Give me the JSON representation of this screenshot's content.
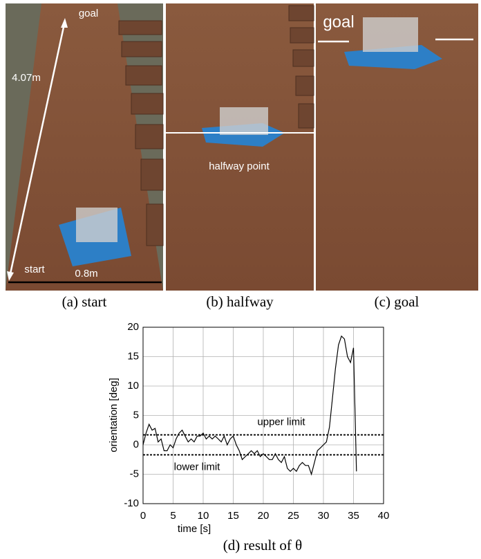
{
  "photos": [
    {
      "caption": "(a) start",
      "labels": [
        "goal",
        "4.07m",
        "start",
        "0.8m"
      ]
    },
    {
      "caption": "(b) halfway",
      "labels": [
        "halfway point"
      ]
    },
    {
      "caption": "(c) goal",
      "labels": [
        "goal"
      ]
    }
  ],
  "chart_data": {
    "type": "line",
    "caption": "(d) result of θ",
    "x_label": "time [s]",
    "y_label": "orientation [deg]",
    "x": [
      0,
      0.5,
      1,
      1.5,
      2,
      2.5,
      3,
      3.5,
      4,
      4.5,
      5,
      5.5,
      6,
      6.5,
      7,
      7.5,
      8,
      8.5,
      9,
      9.5,
      10,
      10.5,
      11,
      11.5,
      12,
      12.5,
      13,
      13.5,
      14,
      14.5,
      15,
      15.5,
      16,
      16.5,
      17,
      17.5,
      18,
      18.5,
      19,
      19.5,
      20,
      20.5,
      21,
      21.5,
      22,
      22.5,
      23,
      23.5,
      24,
      24.5,
      25,
      25.5,
      26,
      26.5,
      27,
      27.5,
      28,
      28.5,
      29,
      29.5,
      30,
      30.5,
      31,
      31.5,
      32,
      32.5,
      33,
      33.5,
      34,
      34.5,
      35,
      35.5
    ],
    "values": [
      0,
      2,
      3.5,
      2.5,
      2.8,
      0.5,
      1,
      -1,
      -1,
      0,
      -0.5,
      1,
      2,
      2.5,
      1.5,
      0.5,
      1,
      0.5,
      1.5,
      1.5,
      2,
      1,
      1.5,
      1,
      1.5,
      1,
      0.5,
      1.5,
      0,
      1,
      1.5,
      0,
      -1,
      -2.5,
      -2,
      -1.5,
      -1,
      -1.5,
      -1,
      -2,
      -1.5,
      -2,
      -2.5,
      -2.5,
      -1.5,
      -2.5,
      -3,
      -2,
      -4,
      -4.5,
      -4,
      -4.5,
      -3.5,
      -3,
      -3.5,
      -3.5,
      -5,
      -3,
      -1,
      -0.5,
      0,
      0.5,
      3,
      8,
      13,
      17,
      18.5,
      18,
      15,
      14,
      16.5,
      -4.5
    ],
    "color": "#000000",
    "reference_lines": [
      {
        "value": 1.7,
        "label": "upper limit"
      },
      {
        "value": -1.7,
        "label": "lower limit"
      }
    ],
    "xlim": [
      0,
      40
    ],
    "xticks": [
      0,
      5,
      10,
      15,
      20,
      25,
      30,
      35,
      40
    ],
    "ylim": [
      -10,
      20
    ],
    "yticks": [
      -10,
      -5,
      0,
      5,
      10,
      15,
      20
    ],
    "grid": true
  }
}
